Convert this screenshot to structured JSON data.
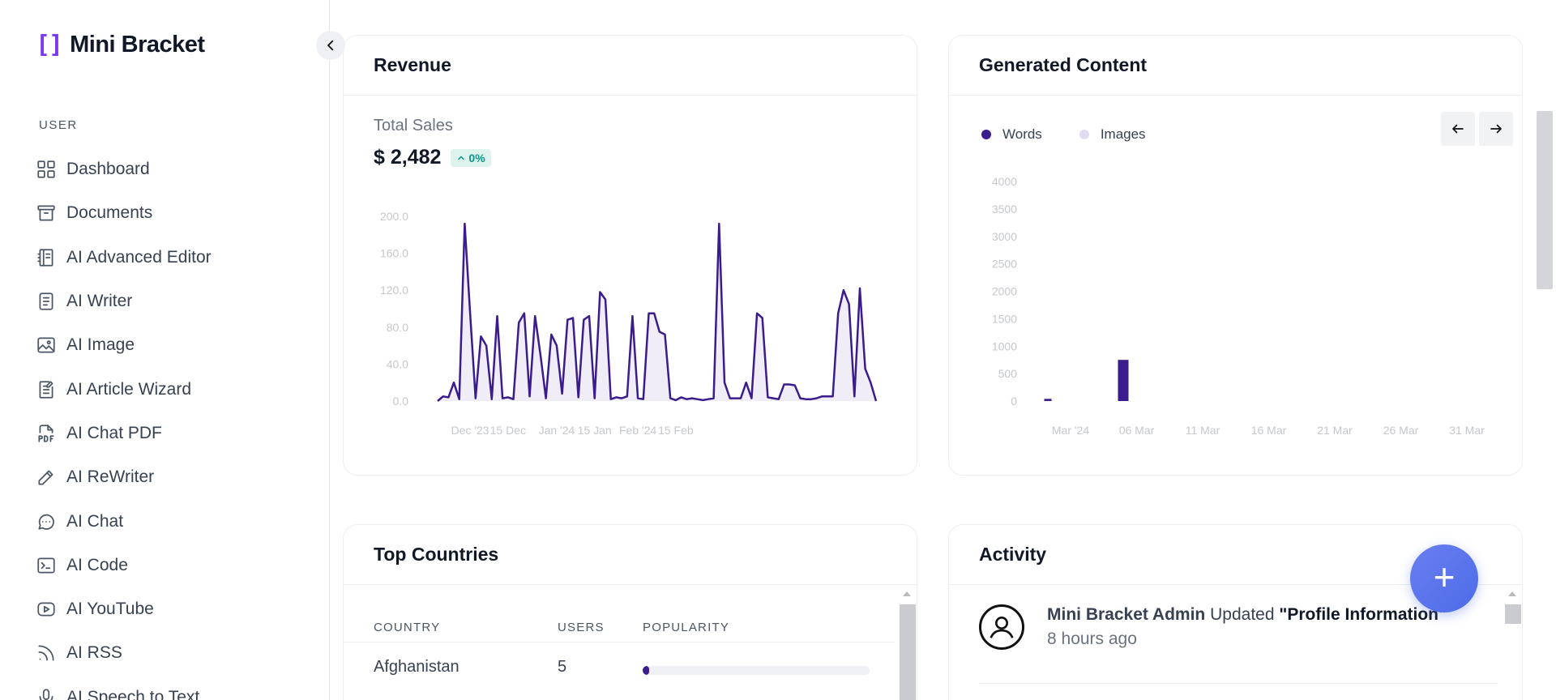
{
  "brand": {
    "mark": "[]",
    "name": "Mini Bracket"
  },
  "sidebar": {
    "section": "USER",
    "items": [
      {
        "label": "Dashboard",
        "icon": "grid-icon"
      },
      {
        "label": "Documents",
        "icon": "archive-icon"
      },
      {
        "label": "AI Advanced Editor",
        "icon": "notebook-icon"
      },
      {
        "label": "AI Writer",
        "icon": "document-icon"
      },
      {
        "label": "AI Image",
        "icon": "image-icon"
      },
      {
        "label": "AI Article Wizard",
        "icon": "article-icon"
      },
      {
        "label": "AI Chat PDF",
        "icon": "pdf-icon"
      },
      {
        "label": "AI ReWriter",
        "icon": "pencil-icon"
      },
      {
        "label": "AI Chat",
        "icon": "chat-icon"
      },
      {
        "label": "AI Code",
        "icon": "terminal-icon"
      },
      {
        "label": "AI YouTube",
        "icon": "youtube-icon"
      },
      {
        "label": "AI RSS",
        "icon": "rss-icon"
      },
      {
        "label": "AI Speech to Text",
        "icon": "microphone-icon"
      }
    ]
  },
  "revenue": {
    "title": "Revenue",
    "total_label": "Total Sales",
    "total_value": "$ 2,482",
    "change": "0%"
  },
  "generated": {
    "title": "Generated Content",
    "legend": [
      {
        "label": "Words",
        "color": "#3b1c8c"
      },
      {
        "label": "Images",
        "color": "#e2dcf3"
      }
    ]
  },
  "chart_data": [
    {
      "type": "area",
      "title": "Total Sales",
      "ylim": [
        0,
        200
      ],
      "y_ticks": [
        "200.0",
        "160.0",
        "120.0",
        "80.0",
        "40.0",
        "0.0"
      ],
      "x_ticks": [
        "Dec '23",
        "15 Dec",
        "Jan '24",
        "15 Jan",
        "Feb '24",
        "15 Feb"
      ],
      "x_tick_index": [
        6,
        13,
        22,
        29,
        37,
        44
      ],
      "color": "#3b1c8c",
      "values": [
        0,
        5,
        4,
        20,
        2,
        192,
        95,
        3,
        70,
        60,
        2,
        92,
        3,
        4,
        2,
        85,
        95,
        5,
        92,
        50,
        3,
        72,
        60,
        8,
        88,
        90,
        4,
        88,
        92,
        3,
        118,
        110,
        2,
        4,
        3,
        5,
        92,
        3,
        2,
        95,
        95,
        75,
        72,
        3,
        1,
        4,
        2,
        3,
        2,
        1,
        2,
        3,
        192,
        20,
        3,
        3,
        3,
        20,
        3,
        95,
        90,
        4,
        3,
        2,
        18,
        18,
        17,
        3,
        2,
        2,
        3,
        5,
        5,
        5,
        95,
        120,
        105,
        5,
        122,
        35,
        20,
        0
      ]
    },
    {
      "type": "bar",
      "title": "Generated Content",
      "ylim": [
        0,
        4000
      ],
      "y_ticks": [
        "4000",
        "3500",
        "3000",
        "2500",
        "2000",
        "1500",
        "1000",
        "500",
        "0"
      ],
      "x_ticks": [
        "Mar '24",
        "06 Mar",
        "11 Mar",
        "16 Mar",
        "21 Mar",
        "26 Mar",
        "31 Mar"
      ],
      "series": [
        {
          "name": "Words",
          "values": [
            {
              "x": "Mar '24",
              "y": 40
            },
            {
              "x": "06 Mar",
              "y": 750
            }
          ]
        },
        {
          "name": "Images",
          "values": []
        }
      ]
    }
  ],
  "countries": {
    "title": "Top Countries",
    "headers": [
      "COUNTRY",
      "USERS",
      "POPULARITY"
    ],
    "rows": [
      {
        "country": "Afghanistan",
        "users": "5",
        "popularity": 0.03
      }
    ]
  },
  "activity": {
    "title": "Activity",
    "items": [
      {
        "user": "Mini Bracket Admin",
        "action": "Updated",
        "target": "\"Profile Information\"",
        "time": "8 hours ago"
      }
    ]
  },
  "fab": {
    "label": "+"
  }
}
